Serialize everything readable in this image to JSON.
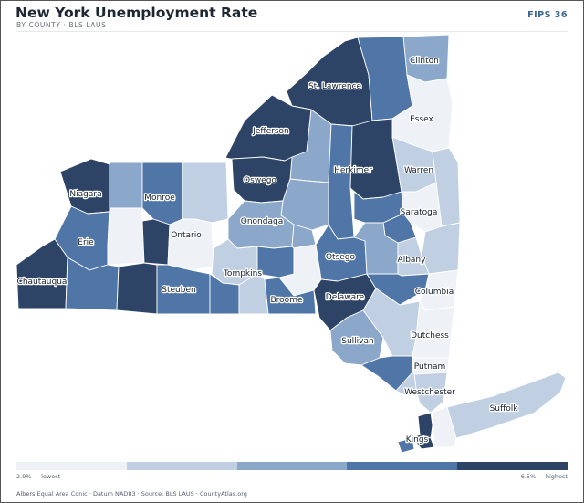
{
  "header": {
    "title": "New York Unemployment Rate",
    "subtitle": "BY COUNTY · BLS LAUS",
    "badge": "FIPS 36"
  },
  "legend": {
    "low_label": "2.9% — lowest",
    "high_label": "6.5% — highest",
    "colors": [
      "#eef2f7",
      "#c0d0e2",
      "#8ba8cb",
      "#4f76a6",
      "#2d4466"
    ]
  },
  "footer": {
    "credit": "Albers Equal Area Conic · Datum NAD83 · Source: BLS LAUS · CountyAtlas.org"
  },
  "map": {
    "counties": [
      {
        "id": "st-lawrence",
        "label": "St. Lawrence",
        "class": 4
      },
      {
        "id": "clinton",
        "label": "Clinton",
        "class": 2
      },
      {
        "id": "franklin",
        "label": "",
        "class": 3
      },
      {
        "id": "essex",
        "label": "Essex",
        "class": 0
      },
      {
        "id": "jefferson",
        "label": "Jefferson",
        "class": 4
      },
      {
        "id": "lewis",
        "label": "",
        "class": 2
      },
      {
        "id": "herkimer",
        "label": "Herkimer",
        "class": 3
      },
      {
        "id": "hamilton",
        "label": "",
        "class": 4
      },
      {
        "id": "warren",
        "label": "Warren",
        "class": 1
      },
      {
        "id": "washington",
        "label": "",
        "class": 1
      },
      {
        "id": "saratoga",
        "label": "Saratoga",
        "class": 0
      },
      {
        "id": "niagara",
        "label": "Niagara",
        "class": 4
      },
      {
        "id": "orleans",
        "label": "",
        "class": 2
      },
      {
        "id": "monroe",
        "label": "Monroe",
        "class": 3
      },
      {
        "id": "wayne",
        "label": "",
        "class": 1
      },
      {
        "id": "oswego",
        "label": "Oswego",
        "class": 4
      },
      {
        "id": "oneida",
        "label": "",
        "class": 2
      },
      {
        "id": "erie",
        "label": "Erie",
        "class": 3
      },
      {
        "id": "genesee",
        "label": "",
        "class": 0
      },
      {
        "id": "livingston",
        "label": "",
        "class": 4
      },
      {
        "id": "ontario",
        "label": "Ontario",
        "class": 0
      },
      {
        "id": "onondaga",
        "label": "Onondaga",
        "class": 2
      },
      {
        "id": "madison",
        "label": "",
        "class": 2
      },
      {
        "id": "fulton",
        "label": "",
        "class": 3
      },
      {
        "id": "schenectady",
        "label": "",
        "class": 3
      },
      {
        "id": "rensselaer",
        "label": "",
        "class": 1
      },
      {
        "id": "chautauqua",
        "label": "Chautauqua",
        "class": 4
      },
      {
        "id": "cattaraugus",
        "label": "",
        "class": 3
      },
      {
        "id": "allegany",
        "label": "",
        "class": 4
      },
      {
        "id": "steuben",
        "label": "Steuben",
        "class": 3
      },
      {
        "id": "tompkins",
        "label": "Tompkins",
        "class": 1
      },
      {
        "id": "cortland",
        "label": "",
        "class": 3
      },
      {
        "id": "chenango",
        "label": "",
        "class": 0
      },
      {
        "id": "otsego",
        "label": "Otsego",
        "class": 3
      },
      {
        "id": "schoharie",
        "label": "",
        "class": 2
      },
      {
        "id": "albany",
        "label": "Albany",
        "class": 1
      },
      {
        "id": "chemung",
        "label": "",
        "class": 3
      },
      {
        "id": "tioga",
        "label": "",
        "class": 1
      },
      {
        "id": "broome",
        "label": "Broome",
        "class": 3
      },
      {
        "id": "delaware",
        "label": "Delaware",
        "class": 4
      },
      {
        "id": "greene",
        "label": "",
        "class": 3
      },
      {
        "id": "columbia",
        "label": "Columbia",
        "class": 0
      },
      {
        "id": "ulster",
        "label": "",
        "class": 1
      },
      {
        "id": "sullivan",
        "label": "Sullivan",
        "class": 2
      },
      {
        "id": "dutchess",
        "label": "Dutchess",
        "class": 0
      },
      {
        "id": "orange",
        "label": "",
        "class": 3
      },
      {
        "id": "putnam",
        "label": "Putnam",
        "class": 0
      },
      {
        "id": "westchester",
        "label": "Westchester",
        "class": 1
      },
      {
        "id": "rockland",
        "label": "",
        "class": 1
      },
      {
        "id": "suffolk",
        "label": "Suffolk",
        "class": 1
      },
      {
        "id": "nassau",
        "label": "",
        "class": 0
      },
      {
        "id": "queens",
        "label": "",
        "class": 4
      },
      {
        "id": "kings",
        "label": "Kings",
        "class": 4
      },
      {
        "id": "richmond",
        "label": "",
        "class": 3
      }
    ]
  }
}
